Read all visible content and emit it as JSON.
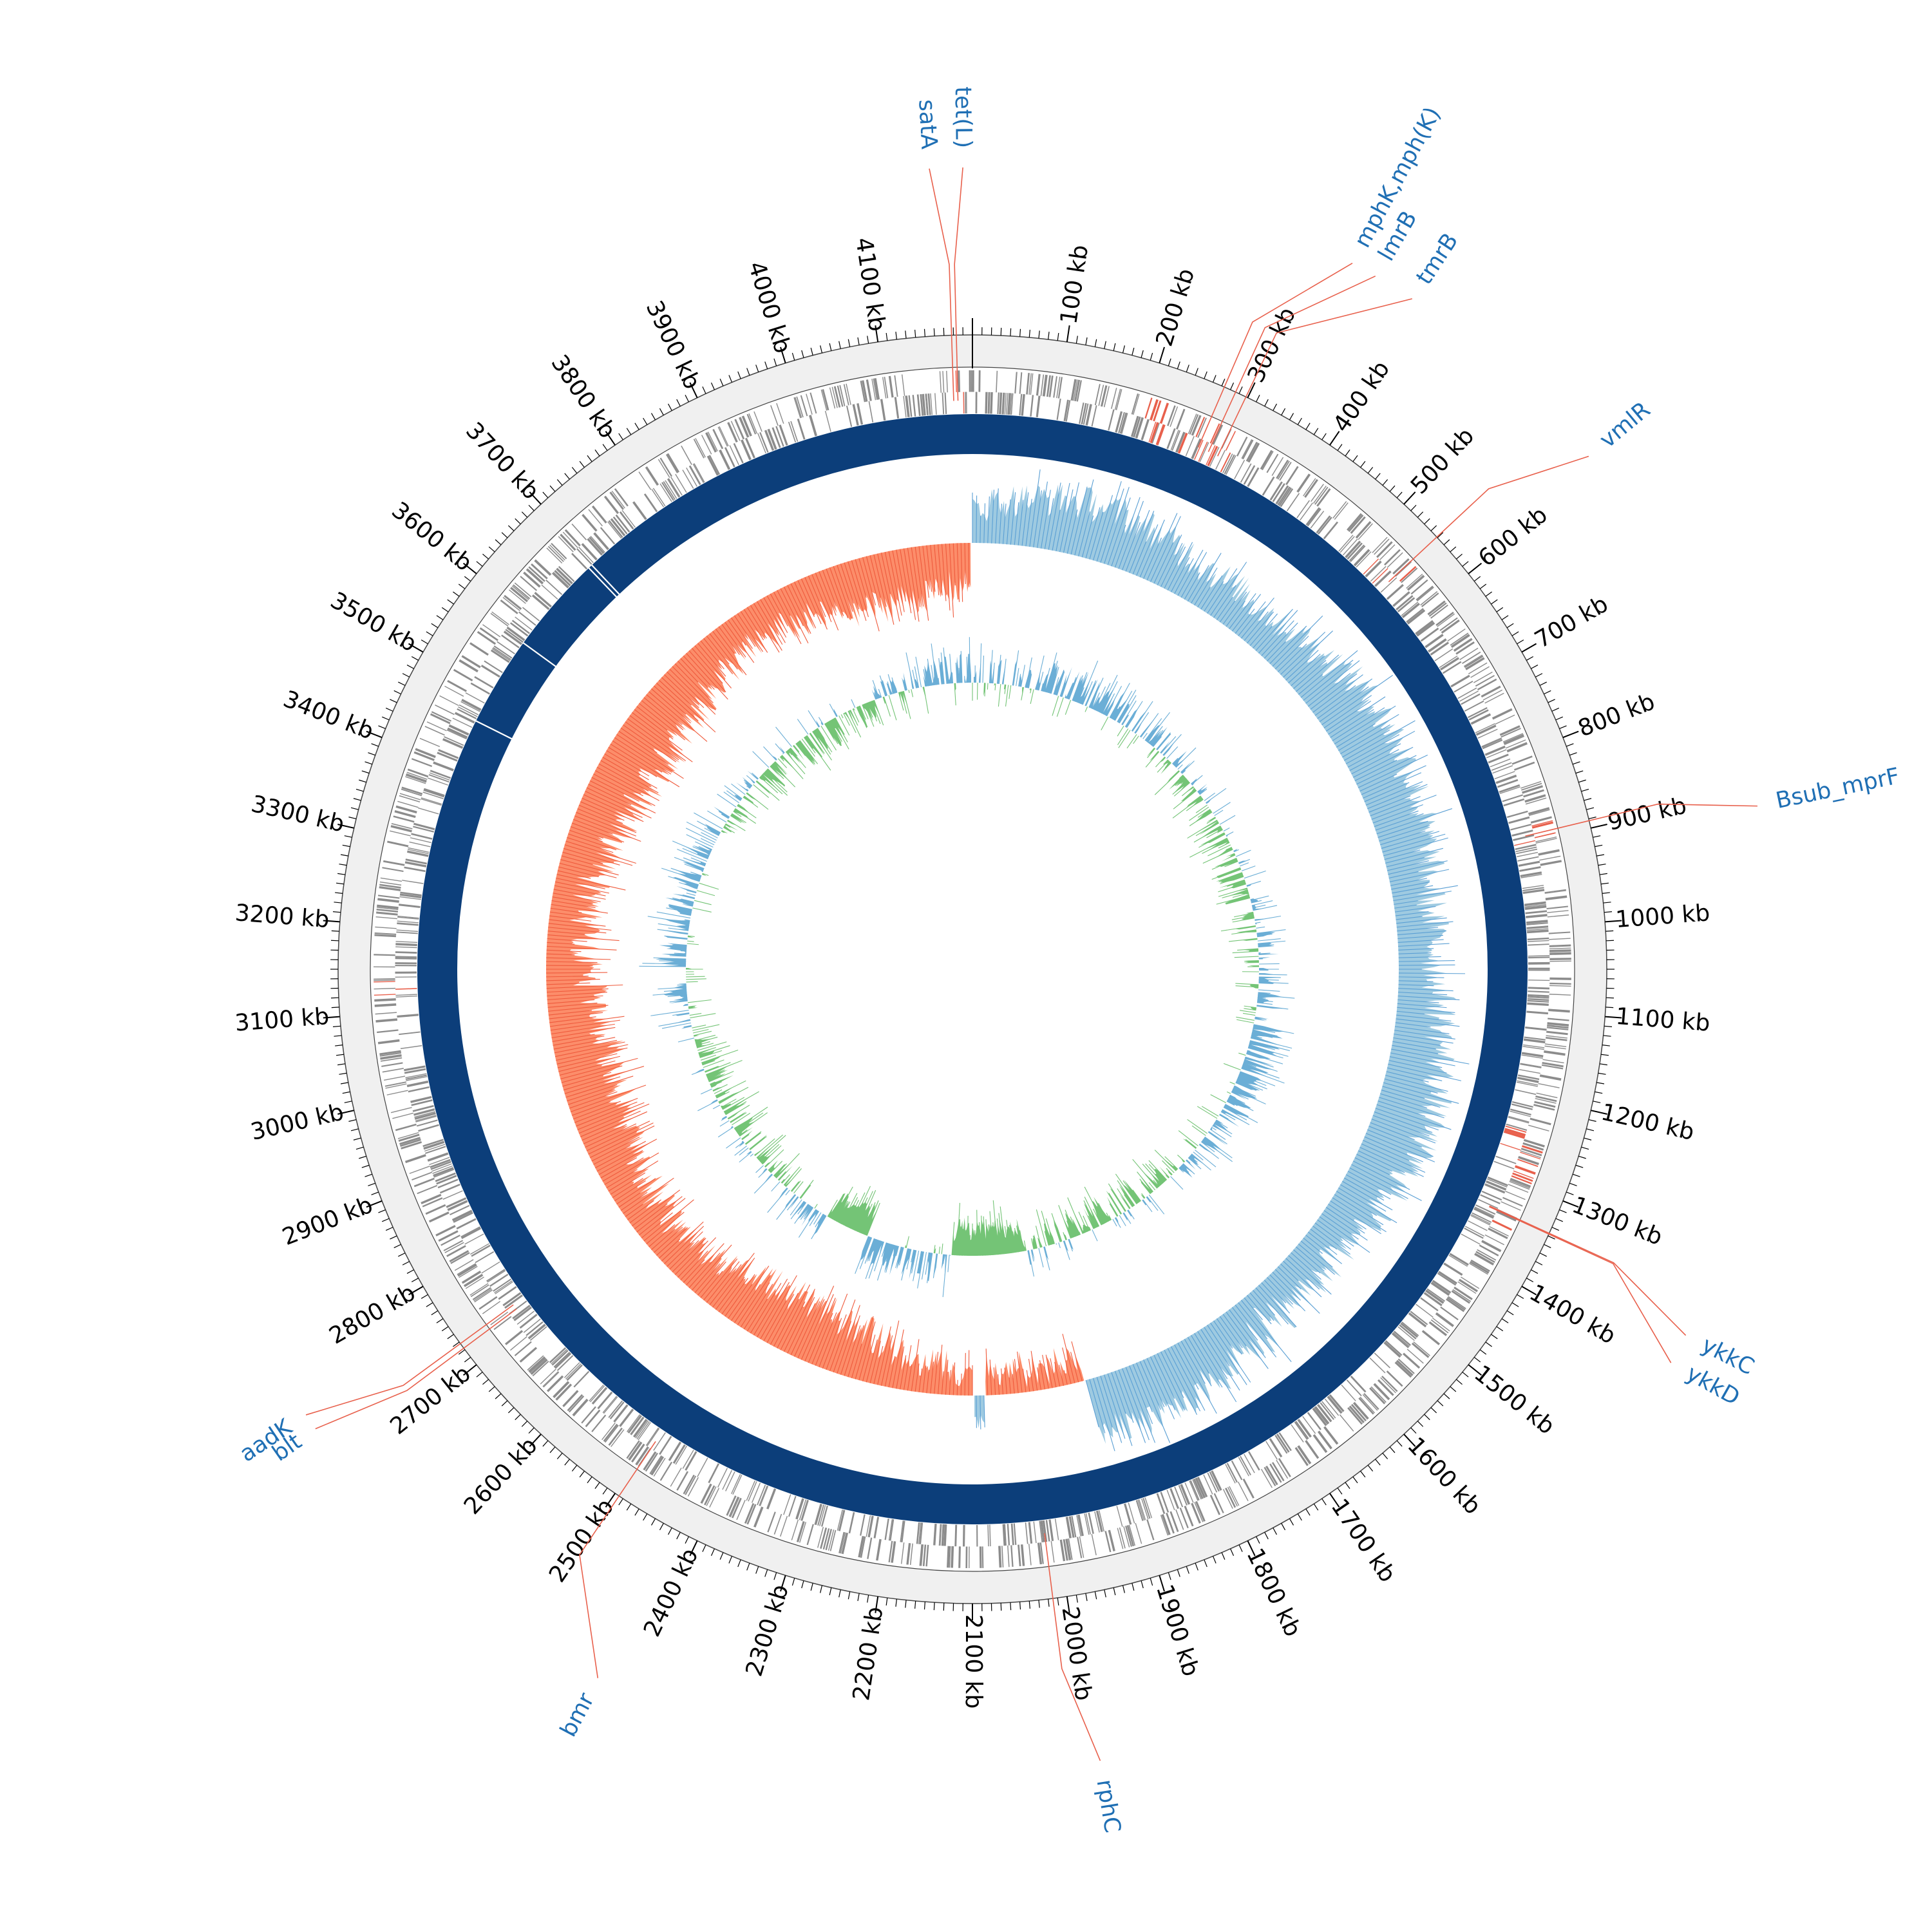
{
  "genome": {
    "length_kb": 4200,
    "tick_interval_kb": 100,
    "minor_tick_kb": 10
  },
  "colors": {
    "ruler_band": "#f0f0f0",
    "ruler_line": "#444444",
    "cds": "#8c8c8c",
    "cds_highlight": "#e8604c",
    "backbone": "#0c3e7a",
    "skew_positive": "#9ecae1",
    "skew_positive_stroke": "#5a9fd4",
    "skew_negative": "#fc8d6a",
    "skew_negative_stroke": "#ef5a3c",
    "gc_high": "#6baed6",
    "gc_low": "#74c476",
    "label_text": "#1f6fb4",
    "leader_line": "#e8604c"
  },
  "tick_labels": [
    "100 kb",
    "200 kb",
    "300 kb",
    "400 kb",
    "500 kb",
    "600 kb",
    "700 kb",
    "800 kb",
    "900 kb",
    "1000 kb",
    "1100 kb",
    "1200 kb",
    "1300 kb",
    "1400 kb",
    "1500 kb",
    "1600 kb",
    "1700 kb",
    "1800 kb",
    "1900 kb",
    "2000 kb",
    "2100 kb",
    "2200 kb",
    "2300 kb",
    "2400 kb",
    "2500 kb",
    "2600 kb",
    "2700 kb",
    "2800 kb",
    "2900 kb",
    "3000 kb",
    "3100 kb",
    "3200 kb",
    "3300 kb",
    "3400 kb",
    "3500 kb",
    "3600 kb",
    "3700 kb",
    "3800 kb",
    "3900 kb",
    "4000 kb",
    "4100 kb"
  ],
  "genes": [
    {
      "name": "tet(L)",
      "position_kb": 4183,
      "label_position_kb": 4192
    },
    {
      "name": "satA",
      "position_kb": 4178,
      "label_position_kb": 4164
    },
    {
      "name": "mphK,mph(K)",
      "position_kb": 273,
      "label_position_kb": 330
    },
    {
      "name": "lmrB",
      "position_kb": 286,
      "label_position_kb": 352
    },
    {
      "name": "tmrB",
      "position_kb": 298,
      "label_position_kb": 388
    },
    {
      "name": "vmlR",
      "position_kb": 549,
      "label_position_kb": 586
    },
    {
      "name": "Bsub_mprF",
      "position_kb": 892,
      "label_position_kb": 913
    },
    {
      "name": "ykkC",
      "position_kb": 1337,
      "label_position_kb": 1367
    },
    {
      "name": "ykkD",
      "position_kb": 1338,
      "label_position_kb": 1393
    },
    {
      "name": "rphC",
      "position_kb": 2015,
      "label_position_kb": 1993
    },
    {
      "name": "bmr",
      "position_kb": 2495,
      "label_position_kb": 2425
    },
    {
      "name": "aadK",
      "position_kb": 2728,
      "label_position_kb": 2756
    },
    {
      "name": "blt",
      "position_kb": 2722,
      "label_position_kb": 2742
    }
  ]
}
